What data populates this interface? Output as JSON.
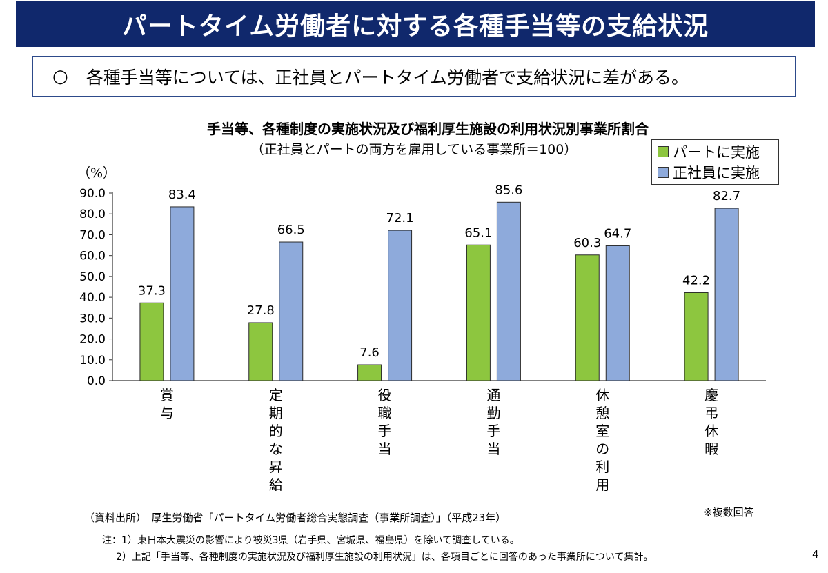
{
  "header": {
    "title": "パートタイム労働者に対する各種手当等の支給状況"
  },
  "summary": {
    "bullet": "○",
    "text": "各種手当等については、正社員とパートタイム労働者で支給状況に差がある。"
  },
  "chart_data": {
    "type": "bar",
    "title": "手当等、各種制度の実施状況及び福利厚生施設の利用状況別事業所割合",
    "subtitle": "（正社員とパートの両方を雇用している事業所＝100）",
    "ylabel": "（%）",
    "xlabel": "",
    "ylim": [
      0,
      90
    ],
    "ytick_step": 10,
    "categories": [
      "賞与",
      "定期的な昇給",
      "役職手当",
      "通勤手当",
      "休憩室の利用",
      "慶弔休暇"
    ],
    "series": [
      {
        "name": "パートに実施",
        "color": "#8dc63f",
        "values": [
          37.3,
          27.8,
          7.6,
          65.1,
          60.3,
          42.2
        ]
      },
      {
        "name": "正社員に実施",
        "color": "#8eaadb",
        "values": [
          83.4,
          66.5,
          72.1,
          85.6,
          64.7,
          82.7
        ]
      }
    ],
    "legend": [
      "パートに実施",
      "正社員に実施"
    ],
    "legend_position": "top-right",
    "grid": false
  },
  "footer": {
    "multi_answer": "※複数回答",
    "source": "（資料出所）　厚生労働省「パートタイム労働者総合実態調査（事業所調査）」（平成23年）",
    "note1": "注：1）東日本大震災の影響により被災3県（岩手県、宮城県、福島県）を除いて調査している。",
    "note2": "2）上記「手当等、各種制度の実施状況及び福利厚生施設の利用状況」は、各項目ごとに回答のあった事業所について集計。",
    "page_number": "4"
  }
}
